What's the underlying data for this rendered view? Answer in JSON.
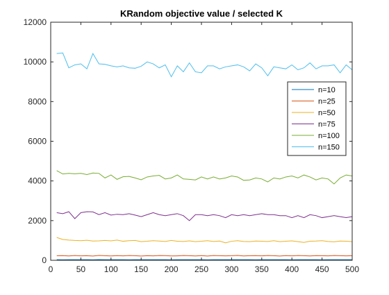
{
  "chart_data": {
    "type": "line",
    "title": "KRandom objective value / selected K",
    "xlabel": "",
    "ylabel": "",
    "xlim": [
      0,
      500
    ],
    "ylim": [
      0,
      12000
    ],
    "xticks": [
      0,
      50,
      100,
      150,
      200,
      250,
      300,
      350,
      400,
      450,
      500
    ],
    "yticks": [
      0,
      2000,
      4000,
      6000,
      8000,
      10000,
      12000
    ],
    "grid": false,
    "legend_position": "top-right",
    "x": [
      10,
      20,
      30,
      40,
      50,
      60,
      70,
      80,
      90,
      100,
      110,
      120,
      130,
      140,
      150,
      160,
      170,
      180,
      190,
      200,
      210,
      220,
      230,
      240,
      250,
      260,
      270,
      280,
      290,
      300,
      310,
      320,
      330,
      340,
      350,
      360,
      370,
      380,
      390,
      400,
      410,
      420,
      430,
      440,
      450,
      460,
      470,
      480,
      490,
      500
    ],
    "series": [
      {
        "name": "n=10",
        "color": "#0072BD",
        "values": [
          30,
          28,
          32,
          29,
          31,
          30,
          28,
          33,
          30,
          29,
          31,
          30,
          28,
          32,
          29,
          30,
          31,
          29,
          30,
          28,
          32,
          30,
          29,
          31,
          30,
          28,
          31,
          30,
          29,
          32,
          30,
          29,
          31,
          28,
          30,
          32,
          29,
          30,
          31,
          28,
          30,
          29,
          32,
          30,
          28,
          31,
          30,
          29,
          30,
          31
        ]
      },
      {
        "name": "n=25",
        "color": "#D95319",
        "values": [
          230,
          235,
          220,
          240,
          225,
          230,
          215,
          245,
          230,
          220,
          235,
          225,
          240,
          230,
          215,
          230,
          225,
          240,
          235,
          220,
          225,
          240,
          230,
          220,
          235,
          215,
          240,
          230,
          225,
          230,
          245,
          220,
          230,
          235,
          225,
          240,
          230,
          215,
          235,
          225,
          240,
          230,
          220,
          235,
          230,
          225,
          240,
          230,
          225,
          230
        ]
      },
      {
        "name": "n=50",
        "color": "#EDB120",
        "values": [
          1150,
          1050,
          1020,
          1000,
          990,
          1010,
          970,
          980,
          1000,
          980,
          1020,
          960,
          990,
          1000,
          940,
          960,
          990,
          970,
          950,
          1000,
          960,
          950,
          980,
          940,
          960,
          990,
          950,
          970,
          880,
          960,
          990,
          950,
          940,
          970,
          960,
          950,
          990,
          940,
          960,
          980,
          940,
          900,
          960,
          970,
          990,
          950,
          930,
          970,
          960,
          940
        ]
      },
      {
        "name": "n=75",
        "color": "#7E2F8E",
        "values": [
          2400,
          2350,
          2450,
          2100,
          2400,
          2450,
          2440,
          2300,
          2400,
          2280,
          2320,
          2300,
          2350,
          2280,
          2200,
          2300,
          2400,
          2300,
          2250,
          2300,
          2350,
          2250,
          2000,
          2300,
          2300,
          2250,
          2300,
          2250,
          2150,
          2300,
          2250,
          2300,
          2250,
          2300,
          2350,
          2300,
          2300,
          2250,
          2250,
          2150,
          2250,
          2150,
          2300,
          2250,
          2150,
          2200,
          2250,
          2200,
          2150,
          2200
        ]
      },
      {
        "name": "n=100",
        "color": "#77AC30",
        "values": [
          4520,
          4350,
          4380,
          4360,
          4380,
          4320,
          4400,
          4380,
          4150,
          4300,
          4080,
          4210,
          4230,
          4150,
          4060,
          4200,
          4250,
          4280,
          4100,
          4150,
          4300,
          4100,
          4080,
          4050,
          4200,
          4100,
          4200,
          4100,
          4150,
          4250,
          4200,
          4030,
          4050,
          4150,
          4100,
          3950,
          4150,
          4100,
          4200,
          4250,
          4150,
          4300,
          4200,
          4050,
          4150,
          4100,
          3850,
          4150,
          4300,
          4250
        ]
      },
      {
        "name": "n=150",
        "color": "#4DBEEE",
        "values": [
          10420,
          10450,
          9700,
          9850,
          9900,
          9650,
          10420,
          9900,
          9880,
          9800,
          9750,
          9800,
          9700,
          9680,
          9780,
          10000,
          9900,
          9700,
          9850,
          9250,
          9800,
          9500,
          9950,
          9500,
          9450,
          9800,
          9800,
          9650,
          9750,
          9800,
          9850,
          9750,
          9550,
          9900,
          9700,
          9300,
          9750,
          9700,
          9650,
          9850,
          9600,
          9700,
          9950,
          9650,
          9800,
          9800,
          9850,
          9450,
          9850,
          9600
        ]
      }
    ]
  }
}
